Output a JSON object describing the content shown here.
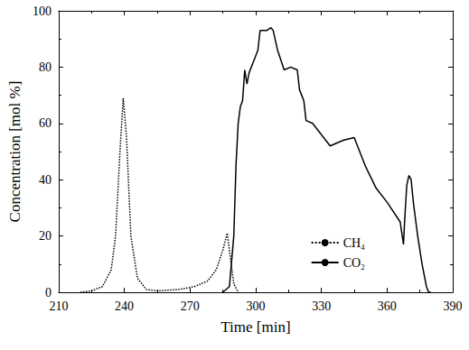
{
  "chart_data": {
    "type": "line",
    "xlabel": "Time [min]",
    "ylabel": "Concentration [mol %]",
    "xlim": [
      210,
      390
    ],
    "xticks": [
      210,
      240,
      270,
      300,
      330,
      360,
      390
    ],
    "ylim": [
      0,
      100
    ],
    "yticks": [
      0,
      20,
      40,
      60,
      80,
      100
    ],
    "grid": false,
    "legend": "lower right",
    "series": [
      {
        "name": "CH₄",
        "color": "#000000",
        "line_style": "dotted",
        "marker": "none",
        "x": [
          220,
          225,
          230,
          234,
          236,
          238,
          239.5,
          241,
          243,
          246,
          250,
          255,
          265,
          272,
          278,
          282,
          285,
          287,
          288.5,
          290,
          292
        ],
        "values": [
          0,
          0.5,
          2,
          8,
          20,
          50,
          69,
          55,
          20,
          5,
          1,
          0.5,
          1,
          2,
          4,
          8,
          15,
          21,
          12,
          3,
          0
        ]
      },
      {
        "name": "CO₂",
        "color": "#000000",
        "line_style": "solid",
        "marker": "none",
        "x": [
          285,
          288,
          290,
          291,
          292,
          293,
          294,
          295,
          296,
          297,
          299,
          301,
          302,
          305,
          307,
          308,
          310,
          313,
          316,
          319,
          320,
          322,
          323,
          326,
          330,
          334,
          340,
          345,
          350,
          355,
          360,
          366,
          367.5,
          368,
          369,
          370,
          371,
          372,
          374,
          376,
          378,
          379,
          380
        ],
        "values": [
          0,
          2,
          20,
          45,
          60,
          66,
          68,
          79,
          74,
          78,
          82,
          86,
          93,
          93,
          94,
          93,
          86,
          79,
          80,
          79,
          72,
          68,
          61,
          60,
          56,
          52,
          54,
          55,
          45,
          37,
          32,
          25,
          17,
          25,
          38,
          41.5,
          40,
          32,
          20,
          10,
          2,
          0,
          0
        ]
      }
    ]
  }
}
